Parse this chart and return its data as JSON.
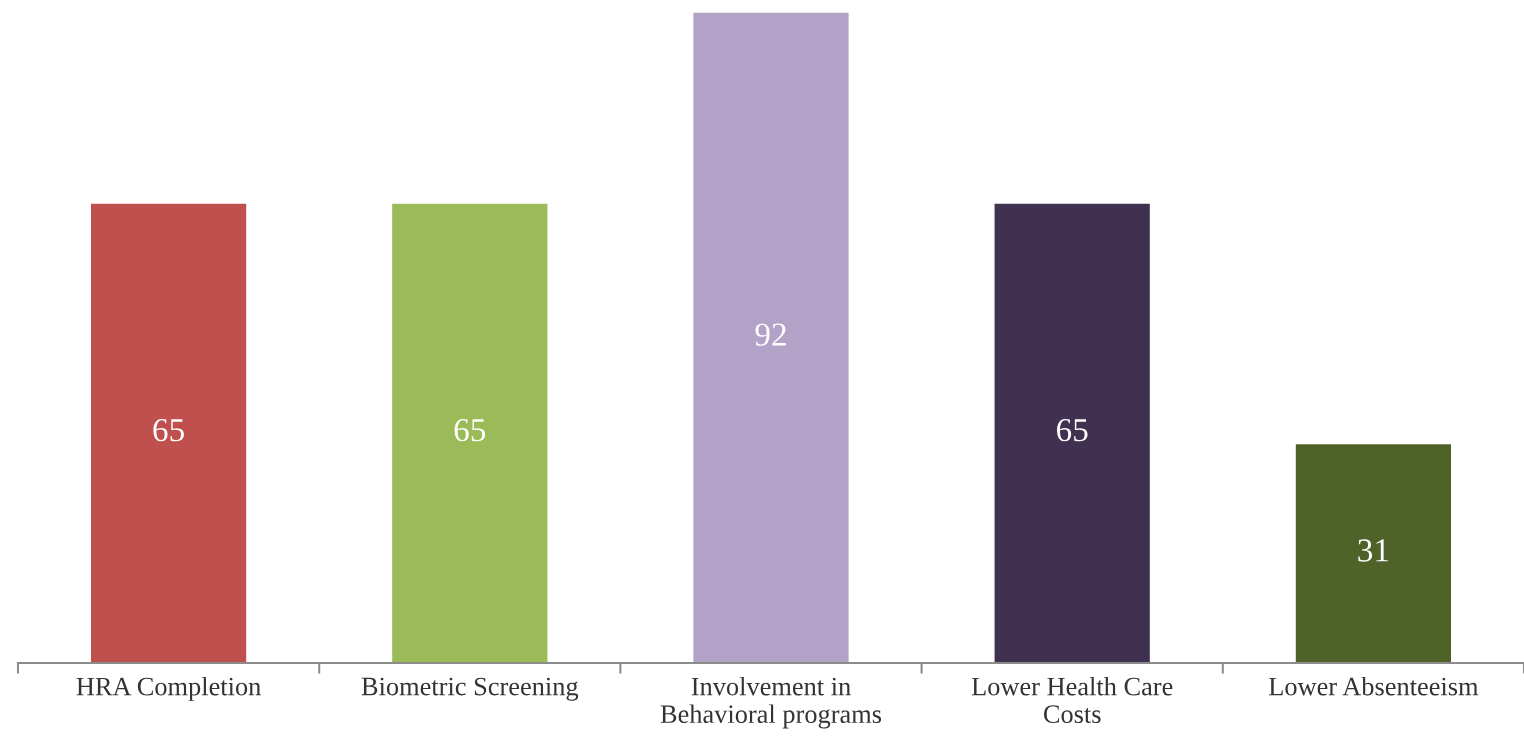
{
  "chart_data": {
    "type": "bar",
    "categories": [
      "HRA Completion",
      "Biometric Screening",
      "Involvement in\nBehavioral programs",
      "Lower Health Care\nCosts",
      "Lower Absenteeism"
    ],
    "values": [
      65,
      65,
      92,
      65,
      31
    ],
    "colors": [
      "#c0504d",
      "#9bbb59",
      "#b3a2c7",
      "#403151",
      "#4f6228"
    ],
    "data_labels": true,
    "grid": false,
    "legend": false,
    "tick_labels": "x"
  }
}
